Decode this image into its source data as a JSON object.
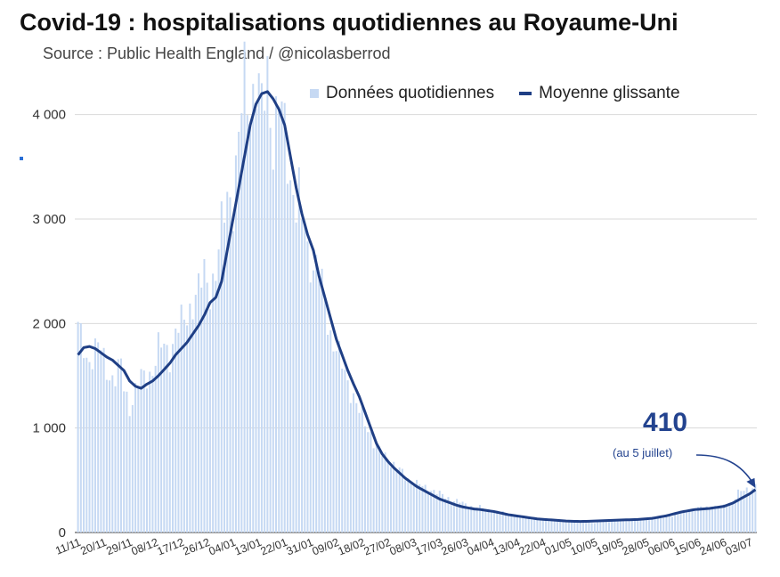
{
  "title": "Covid-19 : hospitalisations quotidiennes au Royaume-Uni",
  "subtitle": "Source : Public Health England / @nicolasberrod",
  "annotation": {
    "value": "410",
    "note": "(au 5 juillet)"
  },
  "colors": {
    "bars": "#c6d9f3",
    "line": "#1f3f85",
    "annotation": "#23438f",
    "grid": "#d9d9d9"
  },
  "chart_data": {
    "type": "bar",
    "title": "Covid-19 : hospitalisations quotidiennes au Royaume-Uni",
    "subtitle": "Source : Public Health England / @nicolasberrod",
    "xlabel": "",
    "ylabel": "",
    "ylim": [
      0,
      4500
    ],
    "y_ticks": [
      0,
      1000,
      2000,
      3000,
      4000
    ],
    "y_tick_labels": [
      "0",
      "1 000",
      "2 000",
      "3 000",
      "4 000"
    ],
    "grid": true,
    "legend_position": "top-right",
    "x_tick_labels": [
      "11/11",
      "20/11",
      "29/11",
      "08/12",
      "17/12",
      "26/12",
      "04/01",
      "13/01",
      "22/01",
      "31/01",
      "09/02",
      "18/02",
      "27/02",
      "08/03",
      "17/03",
      "26/03",
      "04/04",
      "13/04",
      "22/04",
      "01/05",
      "10/05",
      "19/05",
      "28/05",
      "06/06",
      "15/06",
      "24/06",
      "03/07"
    ],
    "tick_interval_days": 9,
    "num_days": 237,
    "series": [
      {
        "name": "Données quotidiennes",
        "type": "bar",
        "anchor_days": [
          0,
          3,
          5,
          7,
          9,
          11,
          13,
          15,
          16,
          18,
          20,
          22,
          24,
          26,
          28,
          30,
          32,
          34,
          36,
          38,
          40,
          42,
          44,
          46,
          48,
          50,
          52,
          54,
          56,
          58,
          60,
          62,
          64,
          66,
          68,
          70,
          72,
          74,
          76,
          77,
          78,
          79,
          80,
          82,
          84,
          86,
          88,
          90,
          92,
          94,
          96,
          98,
          100,
          102,
          104,
          106,
          108,
          110,
          112,
          114,
          116,
          118,
          120,
          122,
          124,
          126,
          128,
          130,
          132,
          134,
          137,
          140,
          143,
          146,
          150,
          155,
          160,
          165,
          170,
          175,
          180,
          185,
          190,
          195,
          200,
          205,
          210,
          215,
          220,
          225,
          228,
          230,
          232,
          234,
          236
        ],
        "anchor_values": [
          1950,
          1650,
          1700,
          1800,
          1650,
          1500,
          1480,
          1600,
          1400,
          1200,
          1350,
          1480,
          1500,
          1550,
          1750,
          1800,
          1700,
          1900,
          2000,
          2100,
          2200,
          2300,
          2500,
          2350,
          2450,
          2900,
          3300,
          3150,
          3700,
          4400,
          4100,
          4250,
          4050,
          4450,
          3700,
          4100,
          3900,
          3400,
          3100,
          3200,
          2950,
          3000,
          2700,
          2550,
          2500,
          2200,
          1900,
          1750,
          1600,
          1450,
          1300,
          1150,
          1050,
          950,
          800,
          750,
          700,
          650,
          600,
          530,
          500,
          470,
          440,
          420,
          400,
          370,
          340,
          320,
          300,
          280,
          250,
          240,
          220,
          200,
          175,
          150,
          130,
          120,
          110,
          100,
          95,
          110,
          120,
          125,
          130,
          150,
          190,
          230,
          240,
          250,
          300,
          380,
          400,
          420,
          450
        ]
      },
      {
        "name": "Moyenne glissante",
        "type": "line",
        "anchor_days": [
          0,
          2,
          4,
          6,
          8,
          10,
          12,
          14,
          16,
          18,
          20,
          22,
          24,
          26,
          28,
          30,
          32,
          34,
          36,
          38,
          40,
          42,
          44,
          46,
          48,
          50,
          52,
          54,
          56,
          58,
          60,
          62,
          64,
          66,
          68,
          70,
          72,
          74,
          76,
          78,
          80,
          82,
          84,
          86,
          88,
          90,
          92,
          94,
          96,
          98,
          100,
          102,
          104,
          106,
          108,
          110,
          112,
          114,
          116,
          118,
          120,
          122,
          124,
          126,
          128,
          130,
          132,
          134,
          136,
          138,
          140,
          145,
          150,
          155,
          160,
          165,
          170,
          175,
          180,
          185,
          190,
          195,
          200,
          205,
          210,
          215,
          220,
          225,
          228,
          230,
          232,
          234,
          236
        ],
        "anchor_values": [
          1700,
          1770,
          1780,
          1760,
          1720,
          1680,
          1650,
          1600,
          1550,
          1450,
          1400,
          1380,
          1420,
          1450,
          1500,
          1560,
          1620,
          1700,
          1760,
          1820,
          1900,
          1980,
          2080,
          2200,
          2250,
          2400,
          2700,
          3000,
          3300,
          3600,
          3900,
          4100,
          4200,
          4220,
          4150,
          4050,
          3900,
          3600,
          3300,
          3050,
          2850,
          2700,
          2450,
          2250,
          2050,
          1850,
          1700,
          1550,
          1420,
          1300,
          1150,
          1000,
          850,
          750,
          680,
          620,
          570,
          520,
          480,
          440,
          410,
          380,
          350,
          320,
          300,
          280,
          260,
          245,
          235,
          225,
          220,
          200,
          170,
          150,
          130,
          120,
          110,
          105,
          110,
          115,
          120,
          125,
          135,
          160,
          195,
          220,
          230,
          250,
          280,
          310,
          340,
          370,
          410
        ]
      }
    ]
  }
}
